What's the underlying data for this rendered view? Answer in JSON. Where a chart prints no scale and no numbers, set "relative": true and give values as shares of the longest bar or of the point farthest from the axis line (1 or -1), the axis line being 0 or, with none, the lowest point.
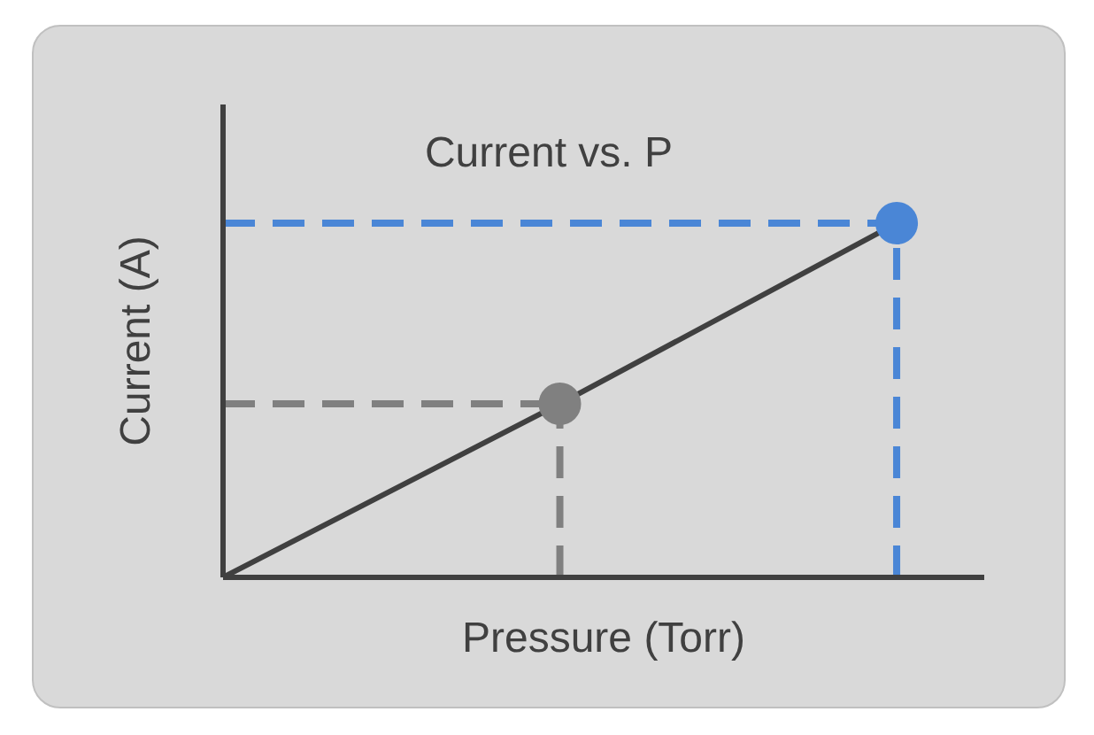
{
  "chart_data": {
    "type": "line",
    "title": "Current vs. P",
    "xlabel": "Pressure (Torr)",
    "ylabel": "Current (A)",
    "relative": true,
    "categories": [
      null,
      null,
      null
    ],
    "series": [
      {
        "color": "#404040",
        "values": [
          0,
          0.49,
          1
        ],
        "colors": [
          null,
          "#808080",
          "#4a86d6"
        ]
      }
    ],
    "ref_lines": [
      {
        "axis": "y",
        "value": 0.49,
        "color": "#808080",
        "line_style": "dashed"
      },
      {
        "axis": "y",
        "value": 1,
        "color": "#4a86d6",
        "line_style": "dashed"
      }
    ],
    "line_style": "solid",
    "marker": "circle",
    "grid": false,
    "legend": false
  }
}
